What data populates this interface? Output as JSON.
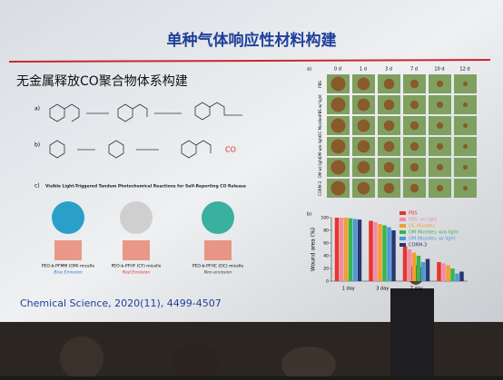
{
  "slide": {
    "title": "单种气体响应性材料构建",
    "subtitle": "无金属释放CO聚合物体系构建",
    "citation": "Chemical Science, 2020(11), 4499-4507",
    "scheme": {
      "labels": [
        "a)",
        "b)",
        "c)"
      ],
      "co": "CO",
      "heading": "Visible Light-Triggered Tandem Photochemical Reactions for Self-Reporting CO Release",
      "micelles": [
        {
          "name": "PEO-b-PFMM (OM) micelle",
          "emission": "Blue Emission"
        },
        {
          "name": "PEO-b-PFHF (CF) micelle",
          "emission": "Red Emission"
        },
        {
          "name": "PEO-b-PFHC (OC) micelle",
          "emission": "Non-emission"
        }
      ]
    },
    "photos": {
      "panel": "a)",
      "days": [
        "0 d",
        "1 d",
        "3 d",
        "7 d",
        "10 d",
        "12 d"
      ],
      "rows": [
        "PBS",
        "PBS w/ light",
        "OC Micelles",
        "OM w/o light",
        "OM w/ light",
        "CORM-3"
      ]
    }
  },
  "chart_data": {
    "type": "bar",
    "panel": "b)",
    "y_label": "Wound area (%)",
    "categories": [
      "1 day",
      "3 day",
      "7 day",
      null
    ],
    "ylim": [
      0,
      100
    ],
    "yticks": [
      0,
      20,
      40,
      60,
      80,
      100
    ],
    "series": [
      {
        "name": "PBS",
        "color": "#e8342f",
        "values": [
          100,
          95,
          55,
          30
        ]
      },
      {
        "name": "PBS; w/ light",
        "color": "#f28ca4",
        "values": [
          100,
          93,
          50,
          28
        ]
      },
      {
        "name": "OC Micelles",
        "color": "#f0a030",
        "values": [
          100,
          90,
          45,
          25
        ]
      },
      {
        "name": "OM Micelles; w/o light",
        "color": "#3cb44b",
        "values": [
          99,
          88,
          40,
          20
        ]
      },
      {
        "name": "OM Micelles; w/ light",
        "color": "#4a9ad8",
        "values": [
          98,
          85,
          30,
          12
        ]
      },
      {
        "name": "CORM-3",
        "color": "#2a3570",
        "values": [
          97,
          80,
          35,
          15
        ]
      }
    ]
  }
}
